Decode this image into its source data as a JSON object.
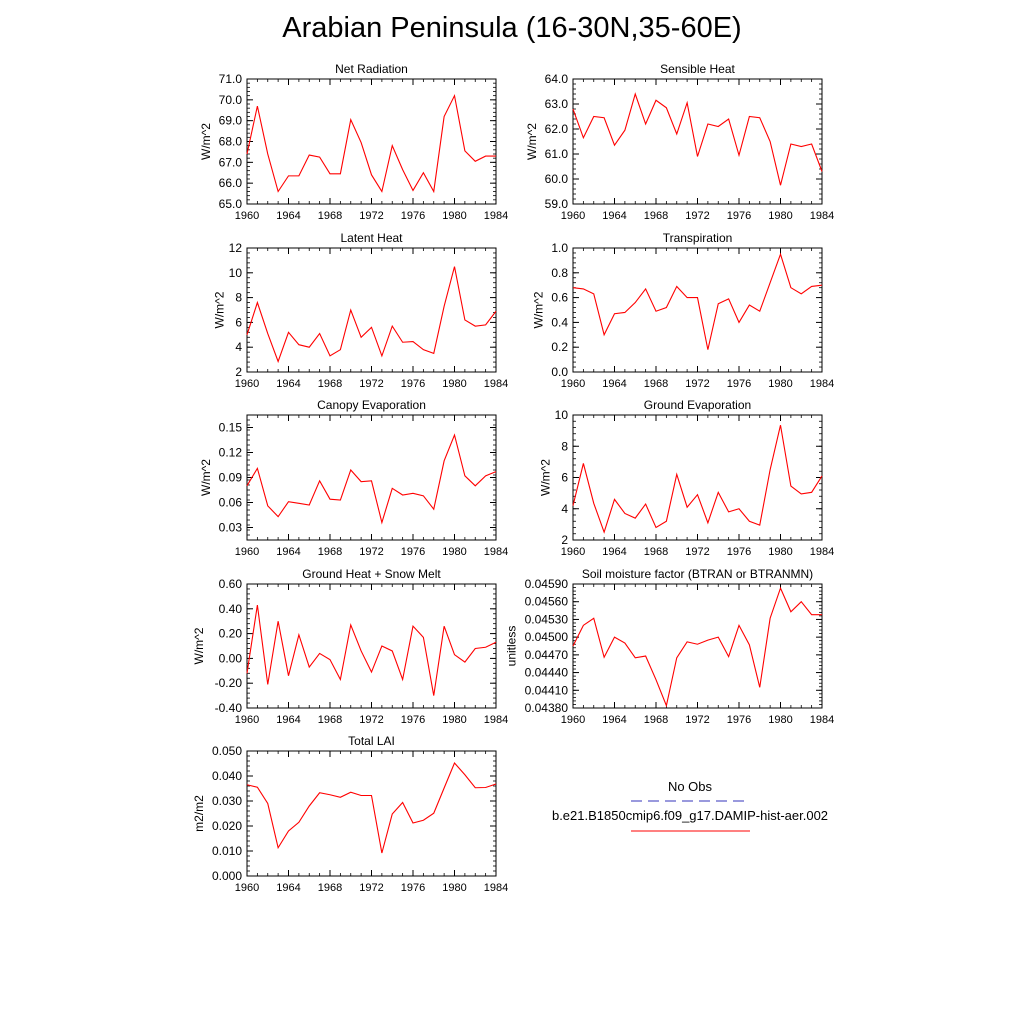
{
  "page": {
    "title": "Arabian Peninsula (16-30N,35-60E)"
  },
  "colors": {
    "model": "#ff0000",
    "obs": "#3333bb"
  },
  "legend": {
    "obs_label": "No Obs",
    "model_label": "b.e21.B1850cmip6.f09_g17.DAMIP-hist-aer.002"
  },
  "chart_data": [
    {
      "type": "line",
      "title": "Net Radiation",
      "ylabel": "W/m^2",
      "xlim": [
        1960,
        1984
      ],
      "ylim": [
        65.0,
        71.0
      ],
      "xticks": [
        1960,
        1964,
        1968,
        1972,
        1976,
        1980,
        1984
      ],
      "yticks": [
        65.0,
        66.0,
        67.0,
        68.0,
        69.0,
        70.0,
        71.0
      ],
      "ytick_labels": [
        "65.0",
        "66.0",
        "67.0",
        "68.0",
        "69.0",
        "70.0",
        "71.0"
      ],
      "x": [
        1960,
        1961,
        1962,
        1963,
        1964,
        1965,
        1966,
        1967,
        1968,
        1969,
        1970,
        1971,
        1972,
        1973,
        1974,
        1975,
        1976,
        1977,
        1978,
        1979,
        1980,
        1981,
        1982,
        1983,
        1984
      ],
      "values": [
        67.4,
        69.7,
        67.4,
        65.6,
        66.35,
        66.35,
        67.35,
        67.25,
        66.45,
        66.45,
        69.05,
        67.95,
        66.4,
        65.6,
        67.8,
        66.65,
        65.65,
        66.5,
        65.6,
        69.2,
        70.2,
        67.55,
        67.05,
        67.3,
        67.3
      ]
    },
    {
      "type": "line",
      "title": "Sensible Heat",
      "ylabel": "W/m^2",
      "xlim": [
        1960,
        1984
      ],
      "ylim": [
        59.0,
        64.0
      ],
      "xticks": [
        1960,
        1964,
        1968,
        1972,
        1976,
        1980,
        1984
      ],
      "yticks": [
        59.0,
        60.0,
        61.0,
        62.0,
        63.0,
        64.0
      ],
      "ytick_labels": [
        "59.0",
        "60.0",
        "61.0",
        "62.0",
        "63.0",
        "64.0"
      ],
      "x": [
        1960,
        1961,
        1962,
        1963,
        1964,
        1965,
        1966,
        1967,
        1968,
        1969,
        1970,
        1971,
        1972,
        1973,
        1974,
        1975,
        1976,
        1977,
        1978,
        1979,
        1980,
        1981,
        1982,
        1983,
        1984
      ],
      "values": [
        62.8,
        61.65,
        62.5,
        62.45,
        61.35,
        61.95,
        63.4,
        62.2,
        63.15,
        62.85,
        61.8,
        63.05,
        60.9,
        62.2,
        62.1,
        62.4,
        60.95,
        62.5,
        62.45,
        61.5,
        59.75,
        61.4,
        61.3,
        61.4,
        60.3
      ]
    },
    {
      "type": "line",
      "title": "Latent Heat",
      "ylabel": "W/m^2",
      "xlim": [
        1960,
        1984
      ],
      "ylim": [
        2,
        12
      ],
      "xticks": [
        1960,
        1964,
        1968,
        1972,
        1976,
        1980,
        1984
      ],
      "yticks": [
        2,
        4,
        6,
        8,
        10,
        12
      ],
      "ytick_labels": [
        "2",
        "4",
        "6",
        "8",
        "10",
        "12"
      ],
      "x": [
        1960,
        1961,
        1962,
        1963,
        1964,
        1965,
        1966,
        1967,
        1968,
        1969,
        1970,
        1971,
        1972,
        1973,
        1974,
        1975,
        1976,
        1977,
        1978,
        1979,
        1980,
        1981,
        1982,
        1983,
        1984
      ],
      "values": [
        5.0,
        7.6,
        5.1,
        2.85,
        5.2,
        4.2,
        4.0,
        5.1,
        3.3,
        3.8,
        7.0,
        4.8,
        5.6,
        3.3,
        5.7,
        4.4,
        4.45,
        3.8,
        3.5,
        7.3,
        10.5,
        6.2,
        5.7,
        5.8,
        6.9
      ]
    },
    {
      "type": "line",
      "title": "Transpiration",
      "ylabel": "W/m^2",
      "xlim": [
        1960,
        1984
      ],
      "ylim": [
        0.0,
        1.0
      ],
      "xticks": [
        1960,
        1964,
        1968,
        1972,
        1976,
        1980,
        1984
      ],
      "yticks": [
        0.0,
        0.2,
        0.4,
        0.6,
        0.8,
        1.0
      ],
      "ytick_labels": [
        "0.0",
        "0.2",
        "0.4",
        "0.6",
        "0.8",
        "1.0"
      ],
      "x": [
        1960,
        1961,
        1962,
        1963,
        1964,
        1965,
        1966,
        1967,
        1968,
        1969,
        1970,
        1971,
        1972,
        1973,
        1974,
        1975,
        1976,
        1977,
        1978,
        1979,
        1980,
        1981,
        1982,
        1983,
        1984
      ],
      "values": [
        0.68,
        0.67,
        0.63,
        0.3,
        0.47,
        0.48,
        0.56,
        0.67,
        0.49,
        0.52,
        0.69,
        0.6,
        0.6,
        0.18,
        0.55,
        0.59,
        0.4,
        0.54,
        0.49,
        0.72,
        0.95,
        0.68,
        0.63,
        0.69,
        0.7
      ]
    },
    {
      "type": "line",
      "title": "Canopy Evaporation",
      "ylabel": "W/m^2",
      "xlim": [
        1960,
        1984
      ],
      "ylim": [
        0.015,
        0.165
      ],
      "xticks": [
        1960,
        1964,
        1968,
        1972,
        1976,
        1980,
        1984
      ],
      "yticks": [
        0.03,
        0.06,
        0.09,
        0.12,
        0.15
      ],
      "ytick_labels": [
        "0.03",
        "0.06",
        "0.09",
        "0.12",
        "0.15"
      ],
      "x": [
        1960,
        1961,
        1962,
        1963,
        1964,
        1965,
        1966,
        1967,
        1968,
        1969,
        1970,
        1971,
        1972,
        1973,
        1974,
        1975,
        1976,
        1977,
        1978,
        1979,
        1980,
        1981,
        1982,
        1983,
        1984
      ],
      "values": [
        0.08,
        0.101,
        0.056,
        0.043,
        0.061,
        0.059,
        0.057,
        0.086,
        0.064,
        0.063,
        0.099,
        0.085,
        0.086,
        0.036,
        0.077,
        0.069,
        0.071,
        0.068,
        0.052,
        0.11,
        0.141,
        0.092,
        0.08,
        0.092,
        0.097
      ]
    },
    {
      "type": "line",
      "title": "Ground Evaporation",
      "ylabel": "W/m^2",
      "xlim": [
        1960,
        1984
      ],
      "ylim": [
        2,
        10
      ],
      "xticks": [
        1960,
        1964,
        1968,
        1972,
        1976,
        1980,
        1984
      ],
      "yticks": [
        2,
        4,
        6,
        8,
        10
      ],
      "ytick_labels": [
        "2",
        "4",
        "6",
        "8",
        "10"
      ],
      "x": [
        1960,
        1961,
        1962,
        1963,
        1964,
        1965,
        1966,
        1967,
        1968,
        1969,
        1970,
        1971,
        1972,
        1973,
        1974,
        1975,
        1976,
        1977,
        1978,
        1979,
        1980,
        1981,
        1982,
        1983,
        1984
      ],
      "values": [
        4.2,
        6.9,
        4.35,
        2.5,
        4.6,
        3.7,
        3.4,
        4.3,
        2.8,
        3.2,
        6.2,
        4.1,
        4.9,
        3.1,
        5.05,
        3.8,
        4.0,
        3.2,
        2.95,
        6.5,
        9.35,
        5.45,
        4.95,
        5.05,
        6.1
      ]
    },
    {
      "type": "line",
      "title": "Ground Heat + Snow Melt",
      "ylabel": "W/m^2",
      "xlim": [
        1960,
        1984
      ],
      "ylim": [
        -0.4,
        0.6
      ],
      "xticks": [
        1960,
        1964,
        1968,
        1972,
        1976,
        1980,
        1984
      ],
      "yticks": [
        -0.4,
        -0.2,
        0.0,
        0.2,
        0.4,
        0.6
      ],
      "ytick_labels": [
        "-0.40",
        "-0.20",
        "0.00",
        "0.20",
        "0.40",
        "0.60"
      ],
      "x": [
        1960,
        1961,
        1962,
        1963,
        1964,
        1965,
        1966,
        1967,
        1968,
        1969,
        1970,
        1971,
        1972,
        1973,
        1974,
        1975,
        1976,
        1977,
        1978,
        1979,
        1980,
        1981,
        1982,
        1983,
        1984
      ],
      "values": [
        -0.12,
        0.43,
        -0.21,
        0.3,
        -0.14,
        0.19,
        -0.07,
        0.04,
        -0.01,
        -0.17,
        0.27,
        0.06,
        -0.11,
        0.1,
        0.06,
        -0.17,
        0.26,
        0.17,
        -0.3,
        0.26,
        0.03,
        -0.03,
        0.08,
        0.09,
        0.13
      ]
    },
    {
      "type": "line",
      "title": "Soil moisture factor (BTRAN or BTRANMN)",
      "ylabel": "unitless",
      "xlim": [
        1960,
        1984
      ],
      "ylim": [
        0.0438,
        0.0459
      ],
      "xticks": [
        1960,
        1964,
        1968,
        1972,
        1976,
        1980,
        1984
      ],
      "yticks": [
        0.0438,
        0.0441,
        0.0444,
        0.0447,
        0.045,
        0.0453,
        0.0456,
        0.0459
      ],
      "ytick_labels": [
        "0.04380",
        "0.04410",
        "0.04440",
        "0.04470",
        "0.04500",
        "0.04530",
        "0.04560",
        "0.04590"
      ],
      "x": [
        1960,
        1961,
        1962,
        1963,
        1964,
        1965,
        1966,
        1967,
        1968,
        1969,
        1970,
        1971,
        1972,
        1973,
        1974,
        1975,
        1976,
        1977,
        1978,
        1979,
        1980,
        1981,
        1982,
        1983,
        1984
      ],
      "values": [
        0.04485,
        0.0452,
        0.04532,
        0.04466,
        0.045,
        0.0449,
        0.04465,
        0.04468,
        0.04428,
        0.04384,
        0.04465,
        0.04492,
        0.04488,
        0.04495,
        0.045,
        0.04467,
        0.0452,
        0.04487,
        0.04415,
        0.04532,
        0.04583,
        0.04543,
        0.0456,
        0.04538,
        0.04538
      ]
    },
    {
      "type": "line",
      "title": "Total LAI",
      "ylabel": "m2/m2",
      "xlim": [
        1960,
        1984
      ],
      "ylim": [
        0.0,
        0.05
      ],
      "xticks": [
        1960,
        1964,
        1968,
        1972,
        1976,
        1980,
        1984
      ],
      "yticks": [
        0.0,
        0.01,
        0.02,
        0.03,
        0.04,
        0.05
      ],
      "ytick_labels": [
        "0.000",
        "0.010",
        "0.020",
        "0.030",
        "0.040",
        "0.050"
      ],
      "x": [
        1960,
        1961,
        1962,
        1963,
        1964,
        1965,
        1966,
        1967,
        1968,
        1969,
        1970,
        1971,
        1972,
        1973,
        1974,
        1975,
        1976,
        1977,
        1978,
        1979,
        1980,
        1981,
        1982,
        1983,
        1984
      ],
      "values": [
        0.0365,
        0.0355,
        0.029,
        0.0113,
        0.018,
        0.0215,
        0.028,
        0.0333,
        0.0325,
        0.0315,
        0.0335,
        0.0322,
        0.0322,
        0.0092,
        0.0248,
        0.0294,
        0.0212,
        0.0223,
        0.0251,
        0.0352,
        0.0452,
        0.0405,
        0.0353,
        0.0354,
        0.0368
      ]
    }
  ]
}
